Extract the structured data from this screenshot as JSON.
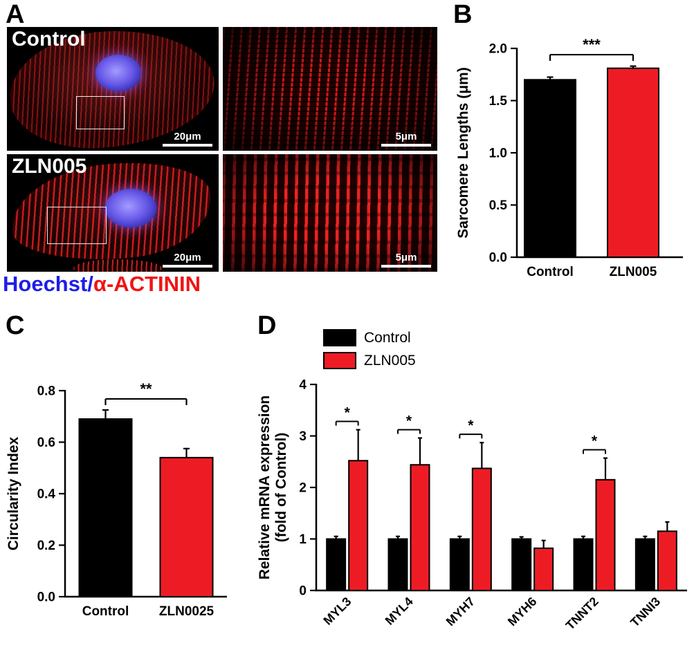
{
  "colors": {
    "accent_red": "#ED1C24",
    "bar_black": "#000000",
    "hoechst_blue": "#1E1EE8",
    "actinin_red": "#F01414",
    "background": "#FFFFFF"
  },
  "panelA": {
    "letter": "A",
    "control_label": "Control",
    "zln_label": "ZLN005",
    "scalebar_20": "20μm",
    "scalebar_5": "5μm",
    "caption_blue": "Hoechst/",
    "caption_red": "α-ACTININ"
  },
  "panelB": {
    "letter": "B"
  },
  "panelC": {
    "letter": "C"
  },
  "panelD": {
    "letter": "D"
  },
  "chart_data": [
    {
      "id": "B",
      "type": "bar",
      "title": "",
      "ylabel": "Sarcomere Lengths (μm)",
      "xlabel": "",
      "categories": [
        "Control",
        "ZLN005"
      ],
      "values": [
        1.7,
        1.81
      ],
      "errors": [
        0.025,
        0.02
      ],
      "colors": [
        "#000000",
        "#ED1C24"
      ],
      "ylim": [
        0,
        2.0
      ],
      "yticks": [
        0.0,
        0.5,
        1.0,
        1.5,
        2.0
      ],
      "ytick_labels": [
        "0.0",
        "0.5",
        "1.0",
        "1.5",
        "2.0"
      ],
      "grid": false,
      "significance": {
        "from": 0,
        "to": 1,
        "label": "***"
      }
    },
    {
      "id": "C",
      "type": "bar",
      "title": "",
      "ylabel": "Circularity Index",
      "xlabel": "",
      "categories": [
        "Control",
        "ZLN0025"
      ],
      "values": [
        0.69,
        0.54
      ],
      "errors": [
        0.035,
        0.035
      ],
      "colors": [
        "#000000",
        "#ED1C24"
      ],
      "ylim": [
        0,
        0.8
      ],
      "yticks": [
        0.0,
        0.2,
        0.4,
        0.6,
        0.8
      ],
      "ytick_labels": [
        "0.0",
        "0.2",
        "0.4",
        "0.6",
        "0.8"
      ],
      "grid": false,
      "significance": {
        "from": 0,
        "to": 1,
        "label": "**"
      }
    },
    {
      "id": "D",
      "type": "grouped-bar",
      "title": "",
      "ylabel_line1": "Relative mRNA expression",
      "ylabel_line2": "(fold of Control)",
      "xlabel": "",
      "categories": [
        "MYL3",
        "MYL4",
        "MYH7",
        "MYH6",
        "TNNT2",
        "TNNI3"
      ],
      "series": [
        {
          "name": "Control",
          "color": "#000000",
          "values": [
            1.0,
            1.0,
            1.0,
            1.0,
            1.0,
            1.0
          ],
          "errors": [
            0.05,
            0.05,
            0.05,
            0.04,
            0.05,
            0.05
          ]
        },
        {
          "name": "ZLN005",
          "color": "#ED1C24",
          "values": [
            2.52,
            2.44,
            2.37,
            0.82,
            2.15,
            1.15
          ],
          "errors": [
            0.6,
            0.52,
            0.5,
            0.15,
            0.42,
            0.18
          ]
        }
      ],
      "ylim": [
        0,
        4
      ],
      "yticks": [
        0,
        1,
        2,
        3,
        4
      ],
      "ytick_labels": [
        "0",
        "1",
        "2",
        "3",
        "4"
      ],
      "grid": false,
      "legend_position": "top-left",
      "group_significance": [
        "*",
        "*",
        "*",
        "",
        "*",
        ""
      ]
    }
  ]
}
